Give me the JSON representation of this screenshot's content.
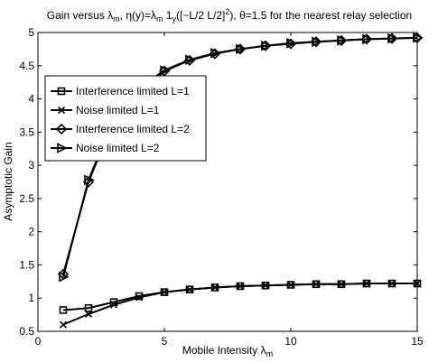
{
  "chart_data": {
    "type": "line",
    "title_parts": {
      "t1": "Gain versus ",
      "t2": "λ",
      "t3": "m",
      "t4": ", η(y)=λ",
      "t5": "m",
      "t6": " 1",
      "t7": "y",
      "t8": "([−L/2 L/2]",
      "t9": "2",
      "t10": "), θ=1.5  for the  nearest relay selection"
    },
    "xlabel_parts": {
      "main": "Mobile Intensity λ",
      "sub": "m"
    },
    "ylabel": "Asymptotic Gain",
    "xlim": [
      0,
      15
    ],
    "ylim": [
      0.5,
      5
    ],
    "xticks": [
      0,
      5,
      10,
      15
    ],
    "yticks": [
      0.5,
      1,
      1.5,
      2,
      2.5,
      3,
      3.5,
      4,
      4.5,
      5
    ],
    "grid": false,
    "legend_position": "upper-left",
    "x": [
      1,
      2,
      3,
      4,
      5,
      6,
      7,
      8,
      9,
      10,
      11,
      12,
      13,
      14,
      15
    ],
    "series": [
      {
        "name": "Interference limited L=1",
        "marker": "square",
        "values": [
          0.82,
          0.85,
          0.94,
          1.03,
          1.09,
          1.13,
          1.16,
          1.18,
          1.19,
          1.2,
          1.21,
          1.21,
          1.22,
          1.22,
          1.22
        ]
      },
      {
        "name": "Noise limited L=1",
        "marker": "x",
        "values": [
          0.6,
          0.76,
          0.9,
          1.01,
          1.09,
          1.13,
          1.16,
          1.18,
          1.19,
          1.2,
          1.21,
          1.21,
          1.22,
          1.22,
          1.22
        ]
      },
      {
        "name": "Interference limited L=2",
        "marker": "diamond",
        "values": [
          1.36,
          2.75,
          3.68,
          4.15,
          4.42,
          4.58,
          4.68,
          4.75,
          4.8,
          4.83,
          4.86,
          4.88,
          4.9,
          4.91,
          4.92
        ]
      },
      {
        "name": "Noise  limited L=2",
        "marker": "triangle-right",
        "values": [
          1.32,
          2.78,
          3.7,
          4.16,
          4.43,
          4.59,
          4.69,
          4.75,
          4.8,
          4.84,
          4.86,
          4.88,
          4.9,
          4.91,
          4.92
        ]
      }
    ]
  }
}
